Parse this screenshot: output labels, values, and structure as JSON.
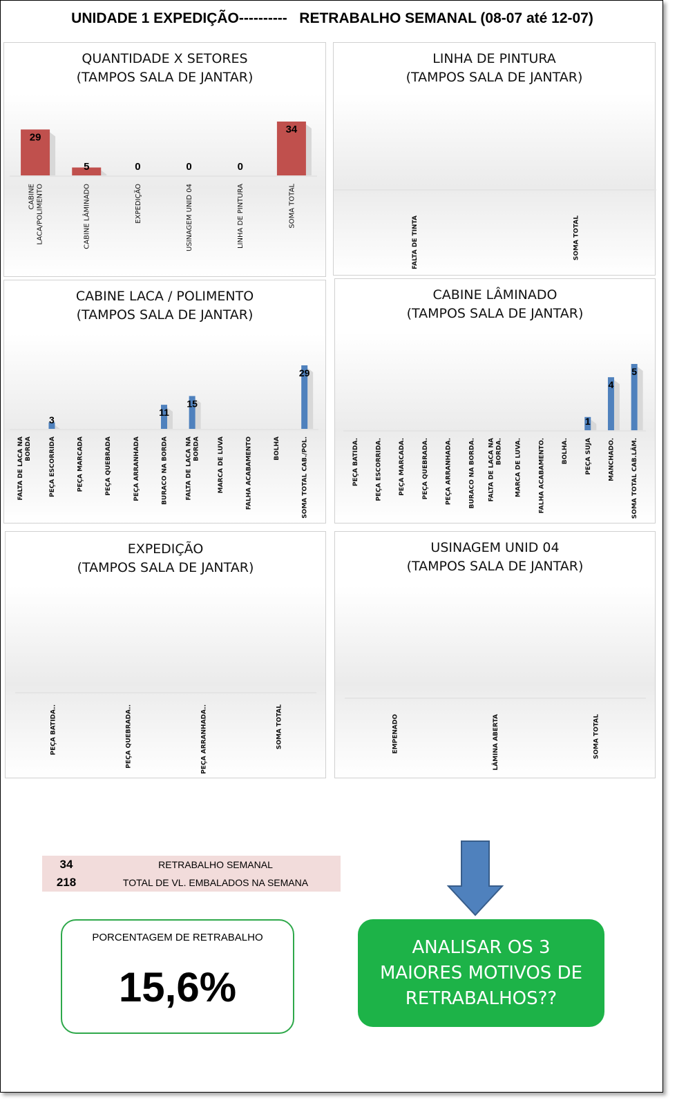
{
  "header": {
    "title": "UNIDADE 1 EXPEDIÇÃO----------   RETRABALHO SEMANAL (08-07 até 12-07)"
  },
  "colors": {
    "red_bar": "#c0504d",
    "blue_bar": "#4f81bd",
    "green_box": "#1db348",
    "green_border": "#2ea84a",
    "summary_bg": "#f2dcdb",
    "arrow": "#4f81bd"
  },
  "summary": {
    "rows": [
      {
        "value": "34",
        "label": "RETRABALHO SEMANAL"
      },
      {
        "value": "218",
        "label": "TOTAL DE VL. EMBALADOS NA SEMANA"
      }
    ]
  },
  "percentage": {
    "label": "PORCENTAGEM DE RETRABALHO",
    "value": "15,6%"
  },
  "action": {
    "text": "ANALISAR OS 3 MAIORES MOTIVOS DE RETRABALHOS??"
  },
  "chart_data": [
    {
      "id": "setores",
      "type": "bar",
      "title": [
        "QUANTIDADE X SETORES",
        "(TAMPOS SALA DE JANTAR)"
      ],
      "categories": [
        [
          "CABINE",
          "LACA/POLIMENTO"
        ],
        [
          "CABINE LÂMINADO"
        ],
        [
          "EXPEDIÇÃO"
        ],
        [
          "USINAGEM UNID 04"
        ],
        [
          "LINHA DE PINTURA"
        ],
        [
          "SOMA TOTAL"
        ]
      ],
      "values": [
        29,
        5,
        0,
        0,
        0,
        34
      ],
      "data_labels": [
        "29",
        "5",
        "0",
        "0",
        "0",
        "34"
      ],
      "ylim": [
        0,
        34
      ]
    },
    {
      "id": "pintura",
      "type": "bar",
      "title": [
        "LINHA DE PINTURA",
        "(TAMPOS SALA DE JANTAR)"
      ],
      "categories": [
        [
          "FALTA DE TINTA"
        ],
        [
          "SOMA TOTAL"
        ]
      ],
      "values": [
        0,
        0
      ],
      "data_labels": [
        "",
        ""
      ],
      "ylim": [
        0,
        1
      ]
    },
    {
      "id": "laca",
      "type": "bar",
      "title": [
        "CABINE LACA / POLIMENTO",
        "(TAMPOS SALA DE JANTAR)"
      ],
      "categories": [
        [
          "FALTA DE LACA NA",
          "BORDA"
        ],
        [
          "PEÇA ESCORRIDA"
        ],
        [
          "PEÇA MARCADA"
        ],
        [
          "PEÇA QUEBRADA"
        ],
        [
          "PEÇA ARRANHADA"
        ],
        [
          "BURACO NA BORDA"
        ],
        [
          "FALTA DE LACA NA",
          "BORDA"
        ],
        [
          "MARCA DE LUVA"
        ],
        [
          "FALHA ACABAMENTO"
        ],
        [
          "BOLHA"
        ],
        [
          "SOMA TOTAL CAB./POL."
        ]
      ],
      "values": [
        0,
        3,
        0,
        0,
        0,
        11,
        15,
        0,
        0,
        0,
        29
      ],
      "data_labels": [
        "",
        "3",
        "",
        "",
        "",
        "11",
        "15",
        "",
        "",
        "",
        "29"
      ],
      "ylim": [
        0,
        29
      ]
    },
    {
      "id": "laminado",
      "type": "bar",
      "title": [
        "CABINE LÂMINADO",
        "(TAMPOS SALA DE JANTAR)"
      ],
      "categories": [
        [
          "PEÇA BATIDA."
        ],
        [
          "PEÇA ESCORRIDA."
        ],
        [
          "PEÇA MARCADA."
        ],
        [
          "PEÇA QUEBRADA."
        ],
        [
          "PEÇA ARRANHADA."
        ],
        [
          "BURACO NA BORDA."
        ],
        [
          "FALTA DE LACA NA",
          "BORDA."
        ],
        [
          "MARCA DE LUVA."
        ],
        [
          "FALHA ACABAMENTO."
        ],
        [
          "BOLHA."
        ],
        [
          "PEÇA SUJA"
        ],
        [
          "MANCHADO."
        ],
        [
          "SOMA TOTAL CAB.LÂM."
        ]
      ],
      "values": [
        0,
        0,
        0,
        0,
        0,
        0,
        0,
        0,
        0,
        0,
        1,
        4,
        5
      ],
      "data_labels": [
        "",
        "",
        "",
        "",
        "",
        "",
        "",
        "",
        "",
        "",
        "1",
        "4",
        "5"
      ],
      "ylim": [
        0,
        5
      ]
    },
    {
      "id": "expedicao",
      "type": "bar",
      "title": [
        "EXPEDIÇÃO",
        "(TAMPOS SALA DE JANTAR)"
      ],
      "categories": [
        [
          "PEÇA BATIDA.."
        ],
        [
          "PEÇA QUEBRADA.."
        ],
        [
          "PEÇA ARRANHADA.."
        ],
        [
          "SOMA TOTAL"
        ]
      ],
      "values": [
        0,
        0,
        0,
        0
      ],
      "data_labels": [
        "",
        "",
        "",
        ""
      ],
      "ylim": [
        0,
        1
      ]
    },
    {
      "id": "usinagem",
      "type": "bar",
      "title": [
        "USINAGEM UNID 04",
        "(TAMPOS SALA DE JANTAR)"
      ],
      "categories": [
        [
          "EMPENADO"
        ],
        [
          "LÂMINA ABERTA"
        ],
        [
          "SOMA TOTAL"
        ]
      ],
      "values": [
        0,
        0,
        0
      ],
      "data_labels": [
        "",
        "",
        ""
      ],
      "ylim": [
        0,
        1
      ]
    }
  ]
}
